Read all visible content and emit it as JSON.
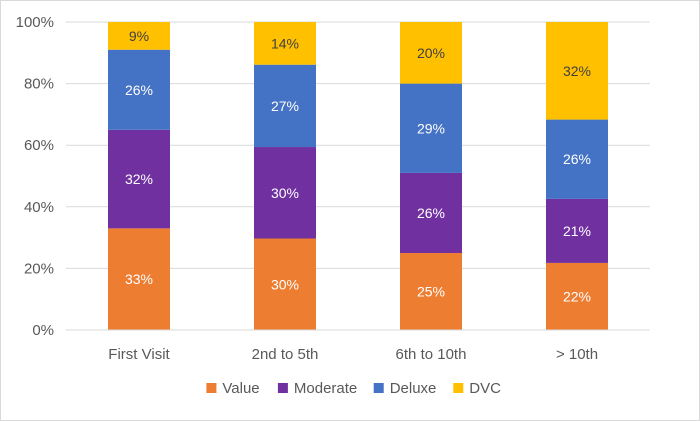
{
  "chart_data": {
    "type": "bar",
    "stacked": true,
    "percent_stacked": true,
    "categories": [
      "First Visit",
      "2nd to 5th",
      "6th to 10th",
      "> 10th"
    ],
    "series": [
      {
        "name": "Value",
        "color": "#ed7d31",
        "label_color": "#ffffff",
        "values": [
          33,
          30,
          25,
          22
        ],
        "labels": [
          "33%",
          "30%",
          "25%",
          "22%"
        ]
      },
      {
        "name": "Moderate",
        "color": "#7030a0",
        "label_color": "#ffffff",
        "values": [
          32,
          30,
          26,
          21
        ],
        "labels": [
          "32%",
          "30%",
          "26%",
          "21%"
        ]
      },
      {
        "name": "Deluxe",
        "color": "#4472c4",
        "label_color": "#ffffff",
        "values": [
          26,
          27,
          29,
          26
        ],
        "labels": [
          "26%",
          "27%",
          "29%",
          "26%"
        ]
      },
      {
        "name": "DVC",
        "color": "#ffc000",
        "label_color": "#404040",
        "values": [
          9,
          14,
          20,
          32
        ],
        "labels": [
          "9%",
          "14%",
          "20%",
          "32%"
        ]
      }
    ],
    "ylim": [
      0,
      100
    ],
    "yticks": [
      0,
      20,
      40,
      60,
      80,
      100
    ],
    "ytick_labels": [
      "0%",
      "20%",
      "40%",
      "60%",
      "80%",
      "100%"
    ],
    "grid": true,
    "legend_position": "bottom"
  }
}
